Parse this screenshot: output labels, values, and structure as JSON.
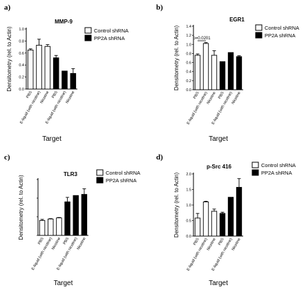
{
  "chart_data": [
    {
      "panel_label": "a)",
      "type": "bar",
      "title": "MMP-9",
      "xlabel": "Target",
      "ylabel": "Densitometry (rel. to Actin)",
      "categories": [
        "PBS",
        "E-liquid (with nicotine)",
        "Nicotine",
        "PBS",
        "E-liquid (with nicotine)",
        "Nicotine"
      ],
      "ylim": [
        0,
        1.0
      ],
      "yticks": [
        "0.0",
        "0.2",
        "0.4",
        "0.6",
        "0.8",
        "1.0"
      ],
      "legend_position": "top-right",
      "series": [
        {
          "name": "Control shRNA",
          "color": "#ffffff",
          "values": [
            0.65,
            0.73,
            0.71,
            null,
            null,
            null
          ],
          "errors": [
            0.02,
            0.1,
            0.03,
            null,
            null,
            null
          ]
        },
        {
          "name": "PP2A shRNA",
          "color": "#000000",
          "values": [
            null,
            null,
            null,
            0.52,
            0.3,
            0.26
          ],
          "errors": [
            null,
            null,
            null,
            0.04,
            0.0,
            0.08
          ]
        }
      ],
      "annotations": []
    },
    {
      "panel_label": "b)",
      "type": "bar",
      "title": "EGR1",
      "xlabel": "Target",
      "ylabel": "Densitometry (rel. to Actin)",
      "categories": [
        "PBS",
        "E-liquid (with nicotine)",
        "Nicotine",
        "PBS",
        "E-liquid (with nicotine)",
        "Nicotine"
      ],
      "ylim": [
        0,
        1.4
      ],
      "yticks": [
        "0.0",
        "0.2",
        "0.4",
        "0.6",
        "0.8",
        "1.0",
        "1.2",
        "1.4"
      ],
      "legend_position": "top-right",
      "series": [
        {
          "name": "Control shRNA",
          "color": "#ffffff",
          "values": [
            0.76,
            1.02,
            0.76,
            null,
            null,
            null
          ],
          "errors": [
            0.03,
            0.02,
            0.1,
            null,
            null,
            null
          ]
        },
        {
          "name": "PP2A shRNA",
          "color": "#000000",
          "values": [
            null,
            null,
            null,
            0.62,
            0.82,
            0.73
          ],
          "errors": [
            null,
            null,
            null,
            0.0,
            0.0,
            0.02
          ]
        }
      ],
      "annotations": [
        {
          "text": "p=0.0201",
          "between": [
            0,
            1
          ],
          "y": 1.08
        }
      ]
    },
    {
      "panel_label": "c)",
      "type": "bar",
      "title": "TLR3",
      "xlabel": "Target",
      "ylabel": "Densitometry (rel. to Actin)",
      "categories": [
        "PBS",
        "E-liquid (with nicotine)",
        "Nicotine",
        "PBS",
        "E-liquid (with nicotine)",
        "Nicotine"
      ],
      "ylim": [
        0,
        1.5
      ],
      "yticks": [],
      "legend_position": "top-right",
      "series": [
        {
          "name": "Control shRNA",
          "color": "#ffffff",
          "values": [
            0.4,
            0.44,
            0.47,
            null,
            null,
            null
          ],
          "errors": [
            0.03,
            0.01,
            0.01,
            null,
            null,
            null
          ]
        },
        {
          "name": "PP2A shRNA",
          "color": "#000000",
          "values": [
            null,
            null,
            null,
            0.9,
            1.07,
            1.1
          ],
          "errors": [
            null,
            null,
            null,
            0.12,
            0.0,
            0.15
          ]
        }
      ],
      "annotations": []
    },
    {
      "panel_label": "d)",
      "type": "bar",
      "title": "p-Src 416",
      "xlabel": "Target",
      "ylabel": "Densitometry (rel. to Actin)",
      "categories": [
        "PBS",
        "E-liquid (with nicotine)",
        "Nicotine",
        "PBS",
        "E-liquid (with nicotine)",
        "Nicotine"
      ],
      "ylim": [
        0,
        2.0
      ],
      "yticks": [
        "0.0",
        "0.5",
        "1.0",
        "1.5",
        "2.0"
      ],
      "legend_position": "top-right",
      "series": [
        {
          "name": "Control shRNA",
          "color": "#ffffff",
          "values": [
            0.58,
            1.1,
            0.8,
            null,
            null,
            null
          ],
          "errors": [
            0.15,
            0.02,
            0.07,
            null,
            null,
            null
          ]
        },
        {
          "name": "PP2A shRNA",
          "color": "#000000",
          "values": [
            null,
            null,
            null,
            0.73,
            1.25,
            1.57
          ],
          "errors": [
            null,
            null,
            null,
            0.04,
            0.0,
            0.28
          ]
        }
      ],
      "annotations": []
    }
  ]
}
